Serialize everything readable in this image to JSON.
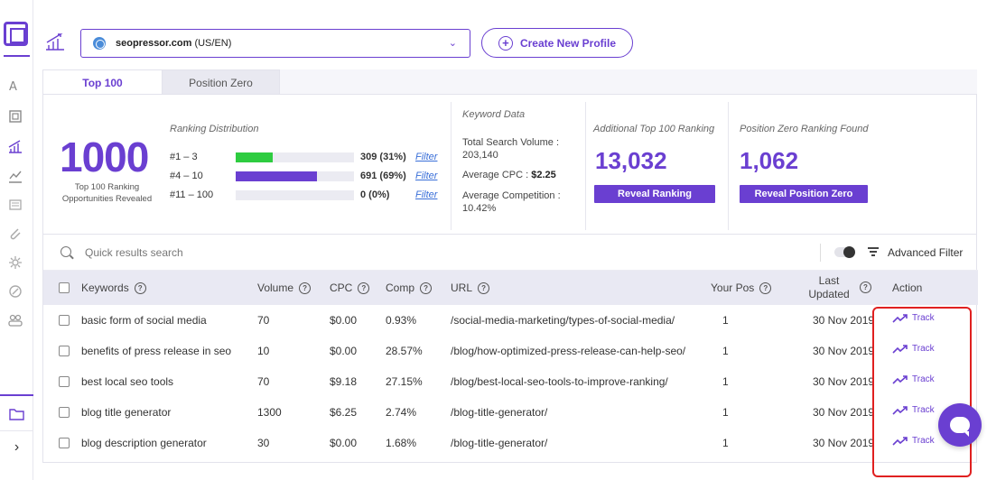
{
  "profile": {
    "domain": "seopressor.com",
    "locale": "(US/EN)"
  },
  "create_profile_label": "Create New Profile",
  "tabs": [
    {
      "label": "Top 100"
    },
    {
      "label": "Position Zero"
    }
  ],
  "summary": {
    "total": "1000",
    "total_caption": "Top 100 Ranking Opportunities Revealed",
    "distribution_title": "Ranking Distribution",
    "distribution": [
      {
        "label": "#1 – 3",
        "value": "309 (31%)",
        "fraction": 0.31,
        "color": "#2ecc40",
        "filter": "Filter"
      },
      {
        "label": "#4 – 10",
        "value": "691 (69%)",
        "fraction": 0.69,
        "color": "#6a3fd1",
        "filter": "Filter"
      },
      {
        "label": "#11 – 100",
        "value": "0 (0%)",
        "fraction": 0.0,
        "color": "#6a3fd1",
        "filter": "Filter"
      }
    ],
    "keyword_data_title": "Keyword Data",
    "total_volume_label": "Total Search Volume :",
    "total_volume": "203,140",
    "avg_cpc_label": "Average CPC :",
    "avg_cpc": "$2.25",
    "avg_comp_label": "Average Competition :",
    "avg_comp": "10.42%",
    "additional_title": "Additional Top 100 Ranking",
    "additional_value": "13,032",
    "additional_button": "Reveal Ranking",
    "pz_title": "Position Zero Ranking Found",
    "pz_value": "1,062",
    "pz_button": "Reveal Position Zero"
  },
  "search_placeholder": "Quick results search",
  "advanced_filter_label": "Advanced Filter",
  "columns": {
    "keywords": "Keywords",
    "volume": "Volume",
    "cpc": "CPC",
    "comp": "Comp",
    "url": "URL",
    "your_pos": "Your Pos",
    "last_updated": "Last Updated",
    "action": "Action"
  },
  "help_glyph": "?",
  "rows": [
    {
      "keyword": "basic form of social media",
      "volume": "70",
      "cpc": "$0.00",
      "comp": "0.93%",
      "url": "/social-media-marketing/types-of-social-media/",
      "pos": "1",
      "updated": "30 Nov 2019",
      "action": "Track"
    },
    {
      "keyword": "benefits of press release in seo",
      "volume": "10",
      "cpc": "$0.00",
      "comp": "28.57%",
      "url": "/blog/how-optimized-press-release-can-help-seo/",
      "pos": "1",
      "updated": "30 Nov 2019",
      "action": "Track"
    },
    {
      "keyword": "best local seo tools",
      "volume": "70",
      "cpc": "$9.18",
      "comp": "27.15%",
      "url": "/blog/best-local-seo-tools-to-improve-ranking/",
      "pos": "1",
      "updated": "30 Nov 2019",
      "action": "Track"
    },
    {
      "keyword": "blog title generator",
      "volume": "1300",
      "cpc": "$6.25",
      "comp": "2.74%",
      "url": "/blog-title-generator/",
      "pos": "1",
      "updated": "30 Nov 2019",
      "action": "Track"
    },
    {
      "keyword": "blog description generator",
      "volume": "30",
      "cpc": "$0.00",
      "comp": "1.68%",
      "url": "/blog-title-generator/",
      "pos": "1",
      "updated": "30 Nov 2019",
      "action": "Track"
    }
  ],
  "colors": {
    "accent": "#6a3fd1",
    "green": "#2ecc40",
    "highlight": "#e02020",
    "link": "#3a6fd8"
  },
  "icons": [
    "logo-icon",
    "keyword-icon",
    "scan-icon",
    "ranking-chart-icon",
    "analytics-icon",
    "report-icon",
    "clip-icon",
    "gear-icon",
    "settings-icon",
    "users-icon",
    "folder-icon",
    "chevron-right-icon",
    "globe-icon",
    "plus-icon",
    "search-icon",
    "filter-icon",
    "trend-icon",
    "chat-icon"
  ]
}
